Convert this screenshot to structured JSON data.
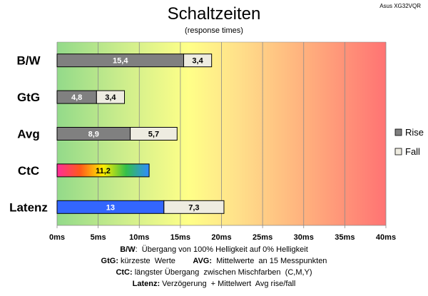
{
  "chart_data": {
    "type": "bar",
    "orientation": "horizontal",
    "stacked": true,
    "title": "Schaltzeiten",
    "subtitle": "(response times)",
    "corner_label": "Asus XG32VQR",
    "categories": [
      "B/W",
      "GtG",
      "Avg",
      "CtC",
      "Latenz"
    ],
    "series": [
      {
        "name": "Rise",
        "values": [
          15.4,
          4.8,
          8.9,
          11.2,
          13
        ],
        "labels": [
          "15,4",
          "4,8",
          "8,9",
          "11,2",
          "13"
        ]
      },
      {
        "name": "Fall",
        "values": [
          3.4,
          3.4,
          5.7,
          null,
          7.3
        ],
        "labels": [
          "3,4",
          "3,4",
          "5,7",
          "",
          "7,3"
        ]
      }
    ],
    "xlim": [
      0,
      40
    ],
    "xticks": [
      "0ms",
      "5ms",
      "10ms",
      "15ms",
      "20ms",
      "25ms",
      "30ms",
      "35ms",
      "40ms"
    ],
    "grid": true,
    "legend_position": "right",
    "colors": {
      "rise": "#808080",
      "fall": "#eeece1",
      "ctc_gradient": [
        "#ff3399",
        "#ff6600",
        "#ffff00",
        "#33cc33",
        "#3399ff"
      ],
      "latenz": "#3366ff",
      "zone_green": "#99dd88",
      "zone_yellow": "#ffff88",
      "zone_red": "#ff7777"
    }
  },
  "notes": [
    [
      {
        "b": "B/W",
        "t": ":  Übergang von 100% Helligkeit auf 0% Helligkeit"
      }
    ],
    [
      {
        "b": "GtG:",
        "t": " kürzeste  Werte        "
      },
      {
        "b": "AVG:",
        "t": "  Mittelwerte  an 15 Messpunkten"
      }
    ],
    [
      {
        "b": "CtC:",
        "t": " längster Übergang  zwischen Mischfarben  (C,M,Y)"
      }
    ],
    [
      {
        "b": "Latenz:",
        "t": " Verzögerung  + Mittelwert  Avg rise/fall"
      }
    ]
  ]
}
